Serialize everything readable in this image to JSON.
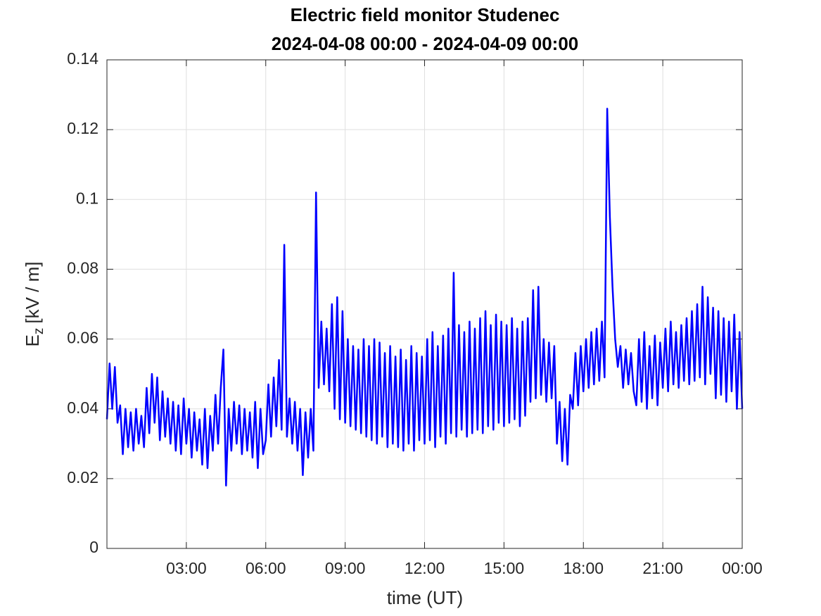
{
  "chart_data": {
    "type": "line",
    "title": "Electric field monitor Studenec",
    "subtitle": "2024-04-08 00:00 - 2024-04-09 00:00",
    "x_label": "time (UT)",
    "y_label": "E",
    "y_label_subscript": "z",
    "y_label_unit": "[kV / m]",
    "xlim": [
      0,
      24
    ],
    "xticks": [
      {
        "value": 3,
        "label": "03:00"
      },
      {
        "value": 6,
        "label": "06:00"
      },
      {
        "value": 9,
        "label": "09:00"
      },
      {
        "value": 12,
        "label": "12:00"
      },
      {
        "value": 15,
        "label": "15:00"
      },
      {
        "value": 18,
        "label": "18:00"
      },
      {
        "value": 21,
        "label": "21:00"
      },
      {
        "value": 24,
        "label": "00:00"
      }
    ],
    "ylim": [
      0,
      0.14
    ],
    "yticks": [
      0,
      0.02,
      0.04,
      0.06,
      0.08,
      0.1,
      0.12,
      0.14
    ],
    "grid": true,
    "x": [
      0,
      0.1,
      0.2,
      0.3,
      0.4,
      0.5,
      0.6,
      0.7,
      0.8,
      0.9,
      1,
      1.1,
      1.2,
      1.3,
      1.4,
      1.5,
      1.6,
      1.7,
      1.8,
      1.9,
      2,
      2.1,
      2.2,
      2.3,
      2.4,
      2.5,
      2.6,
      2.7,
      2.8,
      2.9,
      3,
      3.1,
      3.2,
      3.3,
      3.4,
      3.5,
      3.6,
      3.7,
      3.8,
      3.9,
      4,
      4.1,
      4.2,
      4.3,
      4.4,
      4.5,
      4.6,
      4.7,
      4.8,
      4.9,
      5,
      5.1,
      5.2,
      5.3,
      5.4,
      5.5,
      5.6,
      5.7,
      5.8,
      5.9,
      6,
      6.1,
      6.2,
      6.3,
      6.4,
      6.5,
      6.6,
      6.7,
      6.8,
      6.9,
      7,
      7.1,
      7.2,
      7.3,
      7.4,
      7.5,
      7.6,
      7.7,
      7.8,
      7.9,
      8,
      8.1,
      8.2,
      8.3,
      8.4,
      8.5,
      8.6,
      8.7,
      8.8,
      8.9,
      9,
      9.1,
      9.2,
      9.3,
      9.4,
      9.5,
      9.6,
      9.7,
      9.8,
      9.9,
      10,
      10.1,
      10.2,
      10.3,
      10.4,
      10.5,
      10.6,
      10.7,
      10.8,
      10.9,
      11,
      11.1,
      11.2,
      11.3,
      11.4,
      11.5,
      11.6,
      11.7,
      11.8,
      11.9,
      12,
      12.1,
      12.2,
      12.3,
      12.4,
      12.5,
      12.6,
      12.7,
      12.8,
      12.9,
      13,
      13.1,
      13.2,
      13.3,
      13.4,
      13.5,
      13.6,
      13.7,
      13.8,
      13.9,
      14,
      14.1,
      14.2,
      14.3,
      14.4,
      14.5,
      14.6,
      14.7,
      14.8,
      14.9,
      15,
      15.1,
      15.2,
      15.3,
      15.4,
      15.5,
      15.6,
      15.7,
      15.8,
      15.9,
      16,
      16.1,
      16.2,
      16.3,
      16.4,
      16.5,
      16.6,
      16.7,
      16.8,
      16.9,
      17,
      17.1,
      17.2,
      17.3,
      17.4,
      17.5,
      17.6,
      17.7,
      17.8,
      17.9,
      18,
      18.1,
      18.2,
      18.3,
      18.4,
      18.5,
      18.6,
      18.7,
      18.8,
      18.9,
      19,
      19.1,
      19.2,
      19.3,
      19.4,
      19.5,
      19.6,
      19.7,
      19.8,
      19.9,
      20,
      20.1,
      20.2,
      20.3,
      20.4,
      20.5,
      20.6,
      20.7,
      20.8,
      20.9,
      21,
      21.1,
      21.2,
      21.3,
      21.4,
      21.5,
      21.6,
      21.7,
      21.8,
      21.9,
      22,
      22.1,
      22.2,
      22.3,
      22.4,
      22.5,
      22.6,
      22.7,
      22.8,
      22.9,
      23,
      23.1,
      23.2,
      23.3,
      23.4,
      23.5,
      23.6,
      23.7,
      23.8,
      23.9,
      24
    ],
    "series": [
      {
        "color": "#0000ff",
        "values": [
          0.037,
          0.053,
          0.04,
          0.052,
          0.036,
          0.041,
          0.027,
          0.04,
          0.029,
          0.039,
          0.028,
          0.04,
          0.03,
          0.038,
          0.029,
          0.046,
          0.033,
          0.05,
          0.036,
          0.049,
          0.031,
          0.045,
          0.032,
          0.043,
          0.03,
          0.042,
          0.028,
          0.041,
          0.027,
          0.043,
          0.03,
          0.04,
          0.026,
          0.039,
          0.028,
          0.037,
          0.024,
          0.04,
          0.023,
          0.038,
          0.028,
          0.044,
          0.03,
          0.046,
          0.057,
          0.018,
          0.04,
          0.028,
          0.042,
          0.03,
          0.041,
          0.027,
          0.04,
          0.028,
          0.039,
          0.026,
          0.042,
          0.023,
          0.04,
          0.027,
          0.031,
          0.047,
          0.032,
          0.049,
          0.035,
          0.054,
          0.034,
          0.087,
          0.032,
          0.043,
          0.03,
          0.042,
          0.028,
          0.04,
          0.021,
          0.039,
          0.026,
          0.04,
          0.028,
          0.102,
          0.046,
          0.065,
          0.047,
          0.063,
          0.045,
          0.07,
          0.04,
          0.072,
          0.037,
          0.068,
          0.036,
          0.06,
          0.035,
          0.058,
          0.034,
          0.057,
          0.033,
          0.06,
          0.032,
          0.058,
          0.031,
          0.06,
          0.03,
          0.059,
          0.032,
          0.056,
          0.029,
          0.058,
          0.03,
          0.055,
          0.029,
          0.057,
          0.028,
          0.054,
          0.03,
          0.058,
          0.028,
          0.056,
          0.031,
          0.055,
          0.03,
          0.06,
          0.031,
          0.062,
          0.029,
          0.058,
          0.032,
          0.061,
          0.03,
          0.063,
          0.033,
          0.079,
          0.032,
          0.064,
          0.034,
          0.062,
          0.032,
          0.065,
          0.033,
          0.063,
          0.034,
          0.066,
          0.033,
          0.068,
          0.035,
          0.064,
          0.034,
          0.067,
          0.036,
          0.065,
          0.035,
          0.064,
          0.036,
          0.066,
          0.037,
          0.063,
          0.035,
          0.065,
          0.038,
          0.066,
          0.042,
          0.074,
          0.043,
          0.075,
          0.044,
          0.06,
          0.042,
          0.059,
          0.043,
          0.058,
          0.03,
          0.042,
          0.025,
          0.04,
          0.024,
          0.044,
          0.04,
          0.056,
          0.041,
          0.058,
          0.045,
          0.06,
          0.046,
          0.062,
          0.047,
          0.063,
          0.048,
          0.065,
          0.049,
          0.126,
          0.095,
          0.075,
          0.06,
          0.052,
          0.058,
          0.046,
          0.057,
          0.047,
          0.056,
          0.045,
          0.041,
          0.06,
          0.042,
          0.062,
          0.04,
          0.058,
          0.043,
          0.061,
          0.041,
          0.059,
          0.046,
          0.063,
          0.045,
          0.065,
          0.047,
          0.062,
          0.046,
          0.064,
          0.048,
          0.066,
          0.047,
          0.068,
          0.048,
          0.07,
          0.049,
          0.075,
          0.047,
          0.072,
          0.05,
          0.069,
          0.043,
          0.068,
          0.044,
          0.066,
          0.042,
          0.065,
          0.045,
          0.067,
          0.04,
          0.062,
          0.04
        ]
      }
    ]
  }
}
